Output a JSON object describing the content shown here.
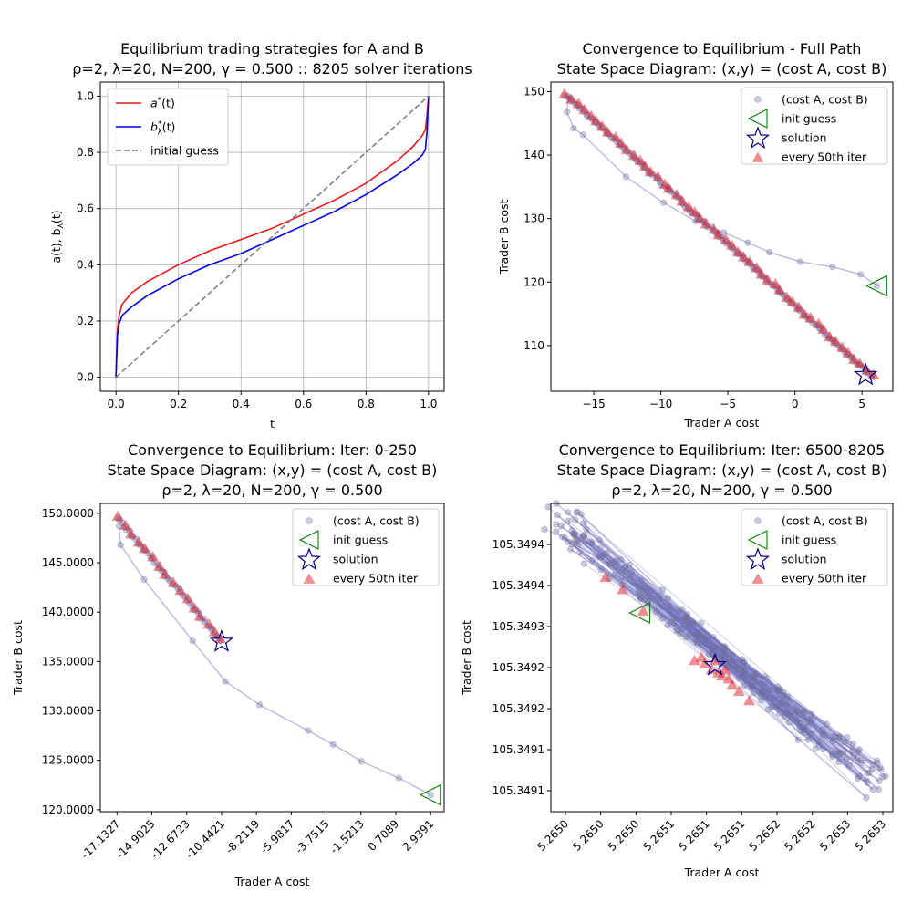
{
  "colors": {
    "red": "#e41a1c",
    "blue": "#0000dd",
    "gray": "#808080",
    "green": "#008000",
    "navy": "#000080",
    "scatter": "#7070a0",
    "triangle": "#e0202a"
  },
  "chart_data": [
    {
      "type": "line",
      "title_lines": [
        "Equilibrium trading strategies for A and B",
        "ρ=2, λ=20, N=200, γ = 0.500 :: 8205 solver iterations"
      ],
      "xlabel": "t",
      "ylabel": "a(t), b_λ(t)",
      "xlim": [
        -0.05,
        1.05
      ],
      "ylim": [
        -0.05,
        1.05
      ],
      "xticks": [
        "0.0",
        "0.2",
        "0.4",
        "0.6",
        "0.8",
        "1.0"
      ],
      "yticks": [
        "0.0",
        "0.2",
        "0.4",
        "0.6",
        "0.8",
        "1.0"
      ],
      "grid": true,
      "legend_position": "upper-left",
      "series": [
        {
          "name": "a*(t)",
          "x": [
            0,
            0.005,
            0.01,
            0.02,
            0.05,
            0.1,
            0.2,
            0.3,
            0.4,
            0.5,
            0.6,
            0.7,
            0.8,
            0.9,
            0.95,
            0.98,
            0.99,
            0.995,
            1.0
          ],
          "y": [
            0,
            0.17,
            0.22,
            0.26,
            0.3,
            0.34,
            0.4,
            0.45,
            0.49,
            0.53,
            0.58,
            0.63,
            0.69,
            0.77,
            0.82,
            0.86,
            0.88,
            0.93,
            1.0
          ]
        },
        {
          "name": "b*_λ(t)",
          "x": [
            0,
            0.005,
            0.01,
            0.02,
            0.05,
            0.1,
            0.2,
            0.3,
            0.4,
            0.5,
            0.6,
            0.7,
            0.8,
            0.9,
            0.95,
            0.98,
            0.99,
            0.995,
            1.0
          ],
          "y": [
            0,
            0.15,
            0.19,
            0.22,
            0.25,
            0.29,
            0.35,
            0.4,
            0.44,
            0.49,
            0.54,
            0.59,
            0.65,
            0.72,
            0.76,
            0.79,
            0.81,
            0.87,
            1.0
          ]
        },
        {
          "name": "initial guess",
          "x": [
            0,
            1
          ],
          "y": [
            0,
            1
          ]
        }
      ]
    },
    {
      "type": "scatter",
      "title_lines": [
        "Convergence to Equilibrium - Full Path",
        "State Space Diagram: (x,y) = (cost A, cost B)"
      ],
      "xlabel": "Trader A cost",
      "ylabel": "Trader B cost",
      "xlim": [
        -18.2,
        7.3
      ],
      "ylim": [
        102.8,
        151.5
      ],
      "xticks": [
        -15,
        -10,
        -5,
        0,
        5
      ],
      "xtick_labels": [
        "−15",
        "−10",
        "−5",
        "0",
        "5"
      ],
      "yticks": [
        110,
        120,
        130,
        140,
        150
      ],
      "ytick_labels": [
        "110",
        "120",
        "130",
        "140",
        "150"
      ],
      "legend_position": "upper-right",
      "legend": [
        "(cost A, cost B)",
        "init guess",
        "solution",
        "every 50th iter"
      ],
      "init_guess": [
        6.1,
        119.4
      ],
      "solution": [
        5.27,
        105.35
      ],
      "early_path": [
        [
          6.1,
          119.4
        ],
        [
          4.9,
          121.2
        ],
        [
          2.8,
          122.4
        ],
        [
          0.4,
          123.2
        ],
        [
          -1.9,
          124.7
        ],
        [
          -3.5,
          126.2
        ],
        [
          -5.3,
          127.8
        ],
        [
          -7.4,
          129.6
        ],
        [
          -9.8,
          132.5
        ],
        [
          -12.6,
          136.6
        ],
        [
          -15.8,
          143.2
        ],
        [
          -16.5,
          144.2
        ],
        [
          -17.0,
          146.8
        ],
        [
          -16.9,
          149.1
        ]
      ],
      "diagonal_start": [
        -17.1,
        149.5
      ],
      "diagonal_end": [
        5.8,
        105.0
      ]
    },
    {
      "type": "scatter",
      "title_lines": [
        "Convergence to Equilibrium: Iter: 0-250",
        "State Space Diagram: (x,y) = (cost A, cost B)",
        "ρ=2, λ=20, N=200, γ = 0.500"
      ],
      "xlabel": "Trader A cost",
      "ylabel": "Trader B cost",
      "xlim": [
        -18.2,
        3.8
      ],
      "ylim": [
        119.8,
        151.0
      ],
      "xticks": [
        -17.1327,
        -14.9025,
        -12.6723,
        -10.4421,
        -8.2119,
        -5.9817,
        -3.7515,
        -1.5213,
        0.7089,
        2.9391
      ],
      "xtick_labels": [
        "-17.1327",
        "-14.9025",
        "-12.6723",
        "-10.4421",
        "-8.2119",
        "-5.9817",
        "-3.7515",
        "-1.5213",
        "0.7089",
        "2.9391"
      ],
      "yticks": [
        120,
        125,
        130,
        135,
        140,
        145,
        150
      ],
      "ytick_labels": [
        "120.0000",
        "125.0000",
        "130.0000",
        "135.0000",
        "140.0000",
        "145.0000",
        "150.0000"
      ],
      "legend_position": "upper-right",
      "legend": [
        "(cost A, cost B)",
        "init guess",
        "solution",
        "every 50th iter"
      ],
      "init_guess": [
        2.9391,
        121.5
      ],
      "solution": [
        -10.4421,
        137.0
      ],
      "early_path": [
        [
          2.9391,
          121.5
        ],
        [
          0.9,
          123.2
        ],
        [
          -1.5,
          124.9
        ],
        [
          -3.3,
          126.6
        ],
        [
          -4.9,
          128.0
        ],
        [
          -8.0,
          130.6
        ],
        [
          -10.2,
          133.0
        ],
        [
          -12.3,
          137.1
        ],
        [
          -15.4,
          143.3
        ],
        [
          -16.9,
          146.8
        ],
        [
          -17.0,
          148.7
        ]
      ],
      "diagonal_start": [
        -17.1,
        149.5
      ],
      "diagonal_end": [
        -10.4421,
        137.0
      ]
    },
    {
      "type": "scatter",
      "title_lines": [
        "Convergence to Equilibrium: Iter: 6500-8205",
        "State Space Diagram: (x,y) = (cost A, cost B)",
        "ρ=2, λ=20, N=200, γ = 0.500"
      ],
      "xlabel": "Trader A cost",
      "ylabel": "Trader B cost",
      "xlim": [
        0,
        10
      ],
      "ylim": [
        0,
        10
      ],
      "xtick_labels": [
        "5.2650",
        "5.2650",
        "5.2650",
        "5.2651",
        "5.2651",
        "5.2651",
        "5.2652",
        "5.2652",
        "5.2653",
        "5.2653"
      ],
      "ytick_labels": [
        "105.3491",
        "105.3491",
        "105.3492",
        "105.3492",
        "105.3493",
        "105.3494",
        "105.3494"
      ],
      "legend_position": "upper-right",
      "legend": [
        "(cost A, cost B)",
        "init guess",
        "solution",
        "every 50th iter"
      ],
      "init_guess": [
        2.6,
        6.45
      ],
      "solution": [
        4.8,
        4.75
      ],
      "diagonal_start": [
        0.2,
        9.6
      ],
      "diagonal_end": [
        9.6,
        0.8
      ]
    }
  ]
}
